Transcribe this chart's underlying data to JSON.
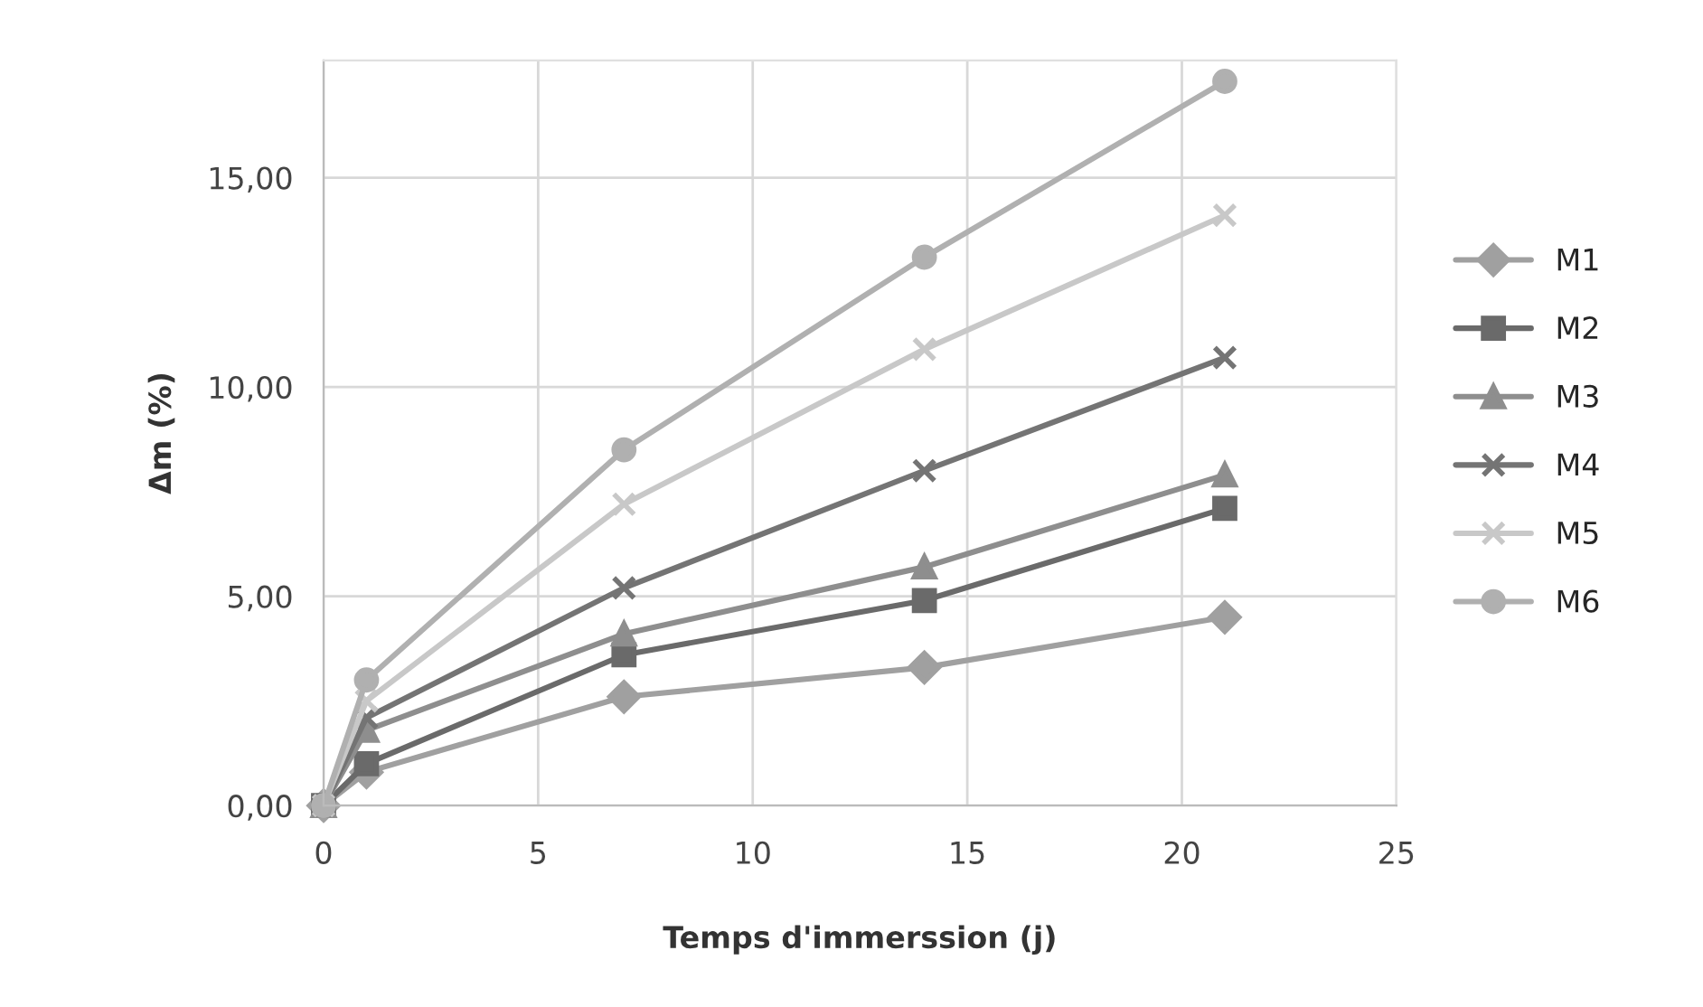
{
  "chart_data": {
    "type": "line",
    "xlabel": "Temps d'immerssion (j)",
    "ylabel": "Δm (%)",
    "x": [
      0,
      1,
      7,
      14,
      21
    ],
    "series": [
      {
        "name": "M1",
        "color": "#a0a0a0",
        "marker": "diamond",
        "values": [
          0,
          0.8,
          2.6,
          3.3,
          4.5
        ]
      },
      {
        "name": "M2",
        "color": "#6a6a6a",
        "marker": "square",
        "values": [
          0,
          1.0,
          3.6,
          4.9,
          7.1
        ]
      },
      {
        "name": "M3",
        "color": "#8e8e8e",
        "marker": "triangle",
        "values": [
          0,
          1.8,
          4.1,
          5.7,
          7.9
        ]
      },
      {
        "name": "M4",
        "color": "#747474",
        "marker": "cross",
        "values": [
          0,
          2.1,
          5.2,
          8.0,
          10.7
        ]
      },
      {
        "name": "M5",
        "color": "#c8c8c8",
        "marker": "cross",
        "values": [
          0,
          2.5,
          7.2,
          10.9,
          14.1
        ]
      },
      {
        "name": "M6",
        "color": "#b0b0b0",
        "marker": "circle",
        "values": [
          0,
          3.0,
          8.5,
          13.1,
          17.3
        ]
      }
    ],
    "xlim": [
      0,
      25
    ],
    "xticks": [
      0,
      5,
      10,
      15,
      20,
      25
    ],
    "ylim": [
      0,
      17.8
    ],
    "yticks": [
      {
        "value": 0,
        "label": "0,00"
      },
      {
        "value": 5,
        "label": "5,00"
      },
      {
        "value": 10,
        "label": "10,00"
      },
      {
        "value": 15,
        "label": "15,00"
      }
    ],
    "grid": true,
    "legend": "right",
    "line_style": "solid"
  }
}
